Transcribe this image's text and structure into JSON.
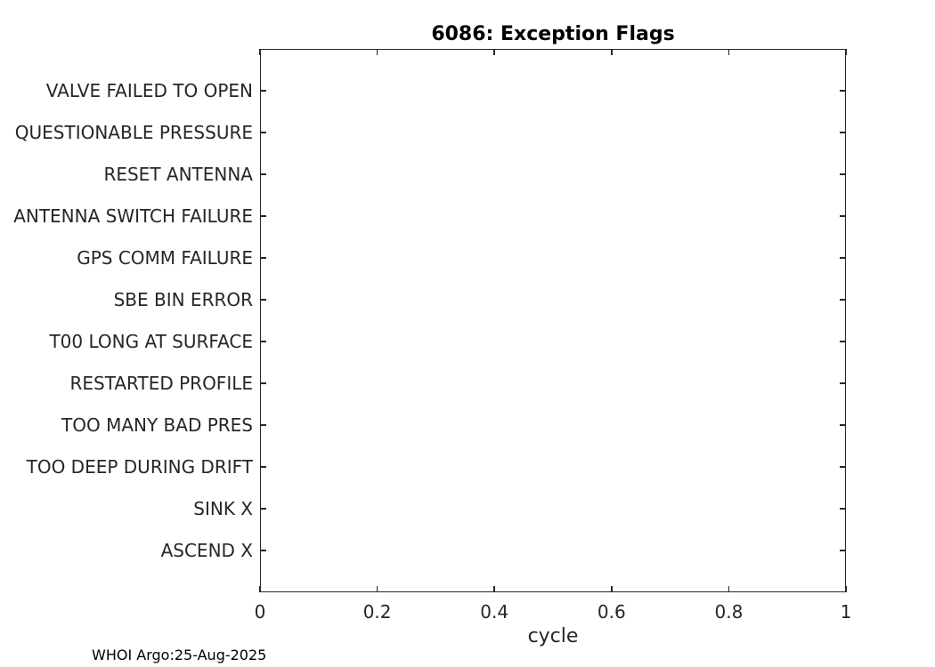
{
  "figure": {
    "footer": "WHOI Argo:25-Aug-2025"
  },
  "colors": {
    "background": "#ffffff",
    "axis": "#262626",
    "title_text": "#000000"
  },
  "chart_data": {
    "type": "scatter",
    "title": "6086: Exception Flags",
    "xlabel": "cycle",
    "ylabel": "",
    "xlim": [
      0,
      1
    ],
    "x_tick_values": [
      0,
      0.2,
      0.4,
      0.6,
      0.8,
      1
    ],
    "x_tick_labels": [
      "0",
      "0.2",
      "0.4",
      "0.6",
      "0.8",
      "1"
    ],
    "y_categories_top_to_bottom": [
      "VALVE FAILED TO OPEN",
      "QUESTIONABLE PRESSURE",
      "RESET ANTENNA",
      "ANTENNA SWITCH FAILURE",
      "GPS COMM FAILURE",
      "SBE BIN ERROR",
      "T00 LONG AT SURFACE",
      "RESTARTED PROFILE",
      "TOO MANY BAD PRES",
      "TOO DEEP DURING DRIFT",
      "SINK X",
      "ASCEND X"
    ],
    "series": [],
    "grid": false,
    "legend": "none",
    "box": true,
    "tick_direction": "in",
    "annotations": [
      "WHOI Argo:25-Aug-2025"
    ]
  }
}
